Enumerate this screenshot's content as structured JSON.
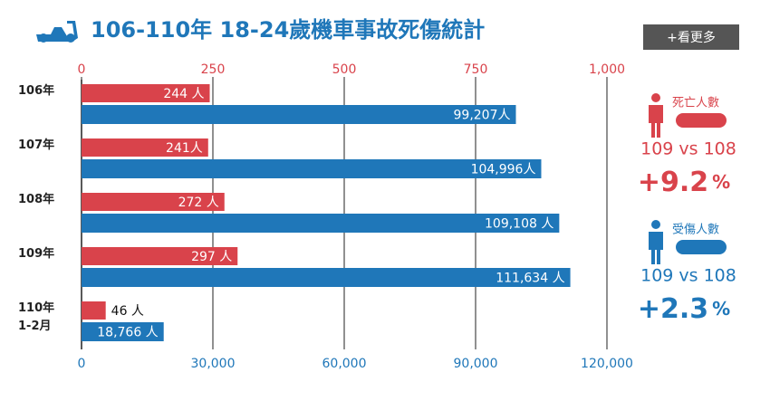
{
  "chart_data": {
    "type": "bar",
    "orientation": "horizontal",
    "title": "106-110年 18-24歲機車事故死傷統計",
    "categories": [
      "106年",
      "107年",
      "108年",
      "109年",
      "110年\n1-2月"
    ],
    "series": [
      {
        "name": "死亡人數",
        "color": "#d9434b",
        "axis": "x2",
        "values": [
          244,
          241,
          272,
          297,
          46
        ],
        "value_labels": [
          "244 人",
          "241人",
          "272 人",
          "297 人",
          "46 人"
        ]
      },
      {
        "name": "受傷人數",
        "color": "#1f77b9",
        "values": [
          99207,
          104996,
          109108,
          111634,
          18766
        ],
        "value_labels": [
          "99,207人",
          "104,996人",
          "109,108 人",
          "111,634 人",
          "18,766 人"
        ]
      }
    ],
    "xlim": [
      0,
      120000
    ],
    "xticks": [
      0,
      {
        "value": 30000,
        "label": "30,000"
      },
      {
        "value": 60000,
        "label": "60,000"
      },
      {
        "value": 90000,
        "label": "90,000"
      },
      {
        "value": 120000,
        "label": "120,000"
      }
    ],
    "x2lim": [
      0,
      1000
    ],
    "x2ticks": [
      0,
      250,
      500,
      750,
      {
        "value": 1000,
        "label": "1,000"
      }
    ],
    "grid": true
  },
  "side_panel": [
    {
      "comparison": "109 vs 108",
      "change": "+9.2",
      "unit": "%"
    },
    {
      "comparison": "109 vs 108",
      "change": "+2.3",
      "unit": "%"
    }
  ],
  "button": "+看更多"
}
